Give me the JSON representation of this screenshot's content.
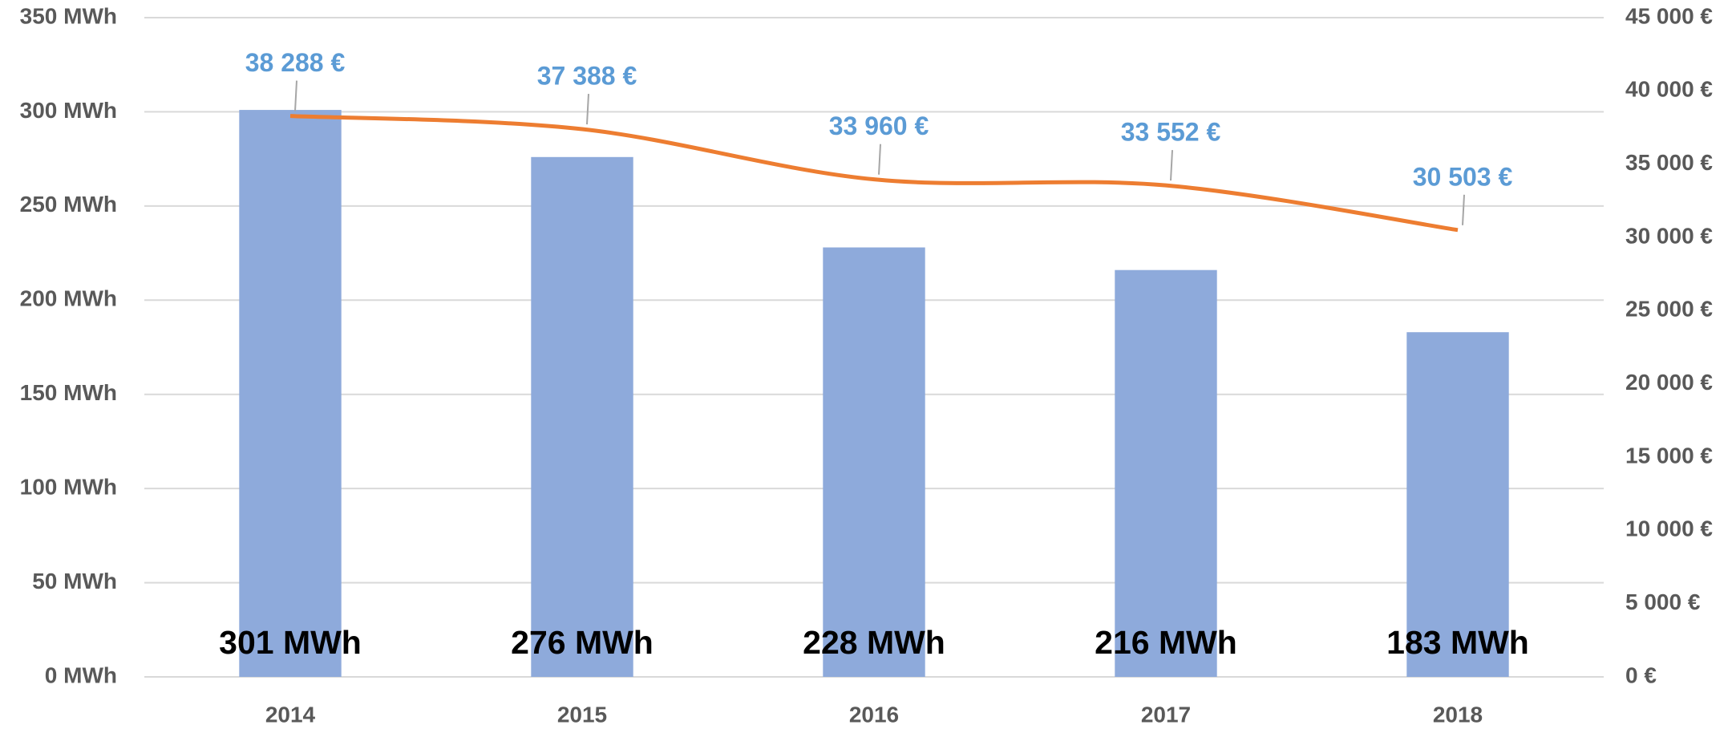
{
  "chart_data": {
    "type": "bar",
    "categories": [
      "2014",
      "2015",
      "2016",
      "2017",
      "2018"
    ],
    "series": [
      {
        "type": "bar",
        "color": "#8eaadb",
        "values": [
          301,
          276,
          228,
          216,
          183
        ],
        "value_labels": [
          "301 MWh",
          "276 MWh",
          "228 MWh",
          "216 MWh",
          "183 MWh"
        ]
      },
      {
        "type": "line",
        "axis": "y2",
        "color": "#ed7d31",
        "values": [
          38288,
          37388,
          33960,
          33552,
          30503
        ],
        "value_labels": [
          "38 288 €",
          "37 388 €",
          "33 960 €",
          "33 552 €",
          "30 503 €"
        ]
      }
    ],
    "ylim": [
      0,
      350
    ],
    "yticks": [
      {
        "value": 0,
        "label": "0 MWh"
      },
      {
        "value": 50,
        "label": "50 MWh"
      },
      {
        "value": 100,
        "label": "100 MWh"
      },
      {
        "value": 150,
        "label": "150 MWh"
      },
      {
        "value": 200,
        "label": "200 MWh"
      },
      {
        "value": 250,
        "label": "250 MWh"
      },
      {
        "value": 300,
        "label": "300 MWh"
      },
      {
        "value": 350,
        "label": "350 MWh"
      }
    ],
    "y2lim": [
      0,
      45000
    ],
    "y2ticks": [
      {
        "value": 0,
        "label": "0 €"
      },
      {
        "value": 5000,
        "label": "5 000 €"
      },
      {
        "value": 10000,
        "label": "10 000 €"
      },
      {
        "value": 15000,
        "label": "15 000 €"
      },
      {
        "value": 20000,
        "label": "20 000 €"
      },
      {
        "value": 25000,
        "label": "25 000 €"
      },
      {
        "value": 30000,
        "label": "30 000 €"
      },
      {
        "value": 35000,
        "label": "35 000 €"
      },
      {
        "value": 40000,
        "label": "40 000 €"
      },
      {
        "value": 45000,
        "label": "45 000 €"
      }
    ],
    "grid": true
  }
}
